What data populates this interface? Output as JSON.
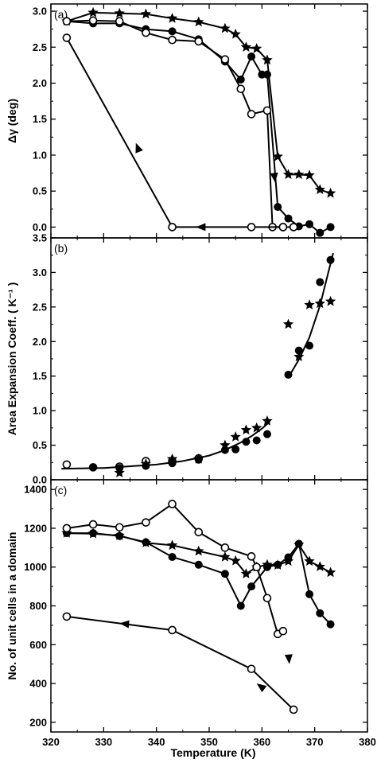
{
  "chart_data": [
    {
      "type": "line",
      "panel_label": "(a)",
      "ylabel": "Δγ (deg)",
      "xlim": [
        320,
        380
      ],
      "ylim": [
        -0.15,
        3.1
      ],
      "x_ticks": [
        320,
        330,
        340,
        350,
        360,
        370,
        380
      ],
      "y_ticks": [
        0.0,
        0.5,
        1.0,
        1.5,
        2.0,
        2.5,
        3.0
      ],
      "y_tick_labels": [
        "0.0",
        "0.5",
        "1.0",
        "1.5",
        "2.0",
        "2.5",
        "3.0"
      ],
      "series": [
        {
          "marker": "star",
          "x": [
            323,
            328,
            333,
            338,
            343,
            348,
            353,
            355,
            357,
            359,
            361,
            363,
            365,
            367,
            369,
            371,
            373
          ],
          "y": [
            2.86,
            2.98,
            2.97,
            2.96,
            2.9,
            2.85,
            2.76,
            2.68,
            2.5,
            2.48,
            2.32,
            0.98,
            0.73,
            0.73,
            0.72,
            0.52,
            0.47
          ]
        },
        {
          "marker": "filled-circle",
          "x": [
            323,
            328,
            333,
            338,
            343,
            348,
            353,
            356,
            358,
            360,
            361,
            363,
            365,
            367,
            369,
            371,
            373
          ],
          "y": [
            2.86,
            2.83,
            2.83,
            2.75,
            2.72,
            2.61,
            2.3,
            2.05,
            2.37,
            2.12,
            2.12,
            0.28,
            0.12,
            0.01,
            0.04,
            -0.08,
            0.0
          ]
        },
        {
          "marker": "open-circle",
          "x": [
            323,
            328,
            333,
            338,
            343,
            348,
            353,
            356,
            358,
            361,
            362,
            364
          ],
          "y": [
            2.86,
            2.87,
            2.86,
            2.7,
            2.6,
            2.58,
            2.33,
            1.92,
            1.57,
            1.62,
            0.0,
            0.0
          ]
        },
        {
          "marker": "open-circle",
          "x": [
            323,
            343,
            358,
            364,
            366
          ],
          "y": [
            2.63,
            0.0,
            0.0,
            0.0,
            0.0
          ]
        }
      ],
      "arrows": [
        {
          "x": [
            362,
            362.5
          ],
          "y": [
            0.95,
            0.62
          ]
        },
        {
          "x": [
            337,
            336.1
          ],
          "y": [
            1.0,
            1.17
          ]
        },
        {
          "x": [
            350,
            347.5
          ],
          "y": [
            0.0,
            0.0
          ]
        }
      ]
    },
    {
      "type": "scatter",
      "panel_label": "(b)",
      "ylabel": "Area Expansion Coeff. ( K⁻¹ )",
      "xlim": [
        320,
        380
      ],
      "ylim": [
        0.0,
        3.5
      ],
      "x_ticks": [
        320,
        330,
        340,
        350,
        360,
        370,
        380
      ],
      "y_ticks": [
        0.0,
        0.5,
        1.0,
        1.5,
        2.0,
        2.5,
        3.0,
        3.5
      ],
      "y_tick_labels": [
        "0.0",
        "0.5",
        "1.0",
        "1.5",
        "2.0",
        "2.5",
        "3.0",
        "3.5"
      ],
      "series": [
        {
          "marker": "open-circle",
          "x": [
            323,
            328,
            333,
            338,
            343,
            348
          ],
          "y": [
            0.22,
            0.18,
            0.19,
            0.27,
            0.27,
            0.31
          ]
        },
        {
          "marker": "filled-circle",
          "x": [
            328,
            333,
            338,
            343,
            348,
            353,
            355,
            357,
            359,
            361,
            365,
            367,
            369,
            371,
            373
          ],
          "y": [
            0.18,
            0.17,
            0.2,
            0.24,
            0.29,
            0.43,
            0.44,
            0.55,
            0.57,
            0.66,
            1.52,
            1.87,
            1.94,
            2.86,
            3.18
          ]
        },
        {
          "marker": "star",
          "x": [
            333,
            338,
            343,
            348,
            353,
            355,
            357,
            359,
            361,
            365,
            367,
            369,
            371,
            373
          ],
          "y": [
            0.1,
            0.23,
            0.3,
            0.3,
            0.5,
            0.62,
            0.72,
            0.75,
            0.85,
            2.25,
            1.78,
            2.53,
            2.55,
            2.58
          ]
        }
      ],
      "fit_lines": [
        {
          "x": [
            322,
            330,
            340,
            345,
            350,
            353,
            356,
            358,
            360,
            361.5
          ],
          "y": [
            0.16,
            0.17,
            0.22,
            0.27,
            0.35,
            0.43,
            0.54,
            0.63,
            0.74,
            0.84
          ]
        },
        {
          "x": [
            365,
            367,
            369,
            371,
            373.5
          ],
          "y": [
            1.48,
            1.74,
            2.06,
            2.52,
            3.28
          ]
        }
      ]
    },
    {
      "type": "line",
      "panel_label": "(c)",
      "ylabel": "No. of unit cells in a domain",
      "xlabel": "Temperature (K)",
      "xlim": [
        320,
        380
      ],
      "ylim": [
        150,
        1450
      ],
      "x_ticks": [
        320,
        330,
        340,
        350,
        360,
        370,
        380
      ],
      "y_ticks": [
        200,
        400,
        600,
        800,
        1000,
        1200,
        1400
      ],
      "y_tick_labels": [
        "200",
        "400",
        "600",
        "800",
        "1000",
        "1200",
        "1400"
      ],
      "series": [
        {
          "marker": "star",
          "x": [
            323,
            328,
            333,
            338,
            343,
            348,
            353,
            355,
            357,
            359,
            361,
            363,
            365,
            367,
            369,
            371,
            373
          ],
          "y": [
            1175,
            1172,
            1162,
            1125,
            1112,
            1082,
            1052,
            1032,
            965,
            1000,
            1012,
            1010,
            1030,
            1115,
            1030,
            1002,
            972
          ]
        },
        {
          "marker": "filled-circle",
          "x": [
            323,
            328,
            333,
            338,
            343,
            348,
            353,
            356,
            358,
            361,
            363,
            365,
            367,
            369,
            371,
            373
          ],
          "y": [
            1175,
            1175,
            1160,
            1128,
            1052,
            1012,
            965,
            800,
            900,
            1000,
            1012,
            1050,
            1120,
            860,
            762,
            705
          ]
        },
        {
          "marker": "open-circle",
          "x": [
            323,
            328,
            333,
            338,
            343,
            348,
            353,
            358,
            359,
            361,
            363,
            364
          ],
          "y": [
            1200,
            1220,
            1205,
            1230,
            1325,
            1180,
            1100,
            1055,
            1000,
            840,
            655,
            670
          ]
        },
        {
          "marker": "open-circle",
          "x": [
            323,
            343,
            358,
            366
          ],
          "y": [
            745,
            675,
            475,
            265
          ]
        }
      ],
      "arrows": [
        {
          "x": [
            365,
            365.2
          ],
          "y": [
            570,
            500
          ]
        },
        {
          "x": [
            335,
            333
          ],
          "y": [
            705,
            710
          ]
        },
        {
          "x": [
            361,
            359
          ],
          "y": [
            360,
            400
          ]
        }
      ]
    }
  ]
}
